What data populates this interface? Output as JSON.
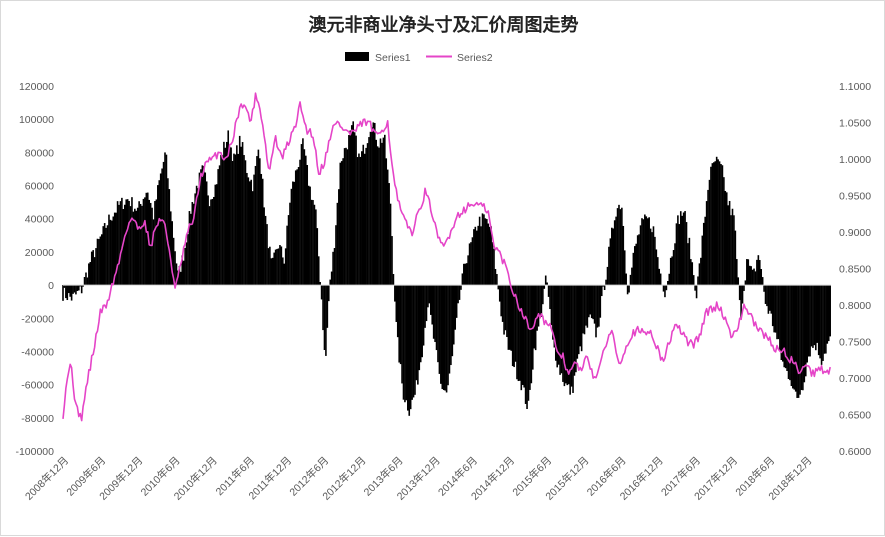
{
  "chart_data": {
    "type": "bar+line",
    "title": "澳元非商业净头寸及汇价周图走势",
    "legend_position": "top",
    "grid": false,
    "colors": {
      "Series1": "#000000",
      "Series2": "#e545c8"
    },
    "series": [
      {
        "name": "Series1",
        "type": "bar",
        "axis": "left",
        "anchors": [
          [
            "2008-12-01",
            -5000
          ],
          [
            "2009-01-15",
            -8000
          ],
          [
            "2009-03-01",
            -3000
          ],
          [
            "2009-04-15",
            15000
          ],
          [
            "2009-06-01",
            28000
          ],
          [
            "2009-07-15",
            40000
          ],
          [
            "2009-09-01",
            48000
          ],
          [
            "2009-10-15",
            52000
          ],
          [
            "2009-12-01",
            45000
          ],
          [
            "2010-01-15",
            58000
          ],
          [
            "2010-02-15",
            42000
          ],
          [
            "2010-03-15",
            62000
          ],
          [
            "2010-04-15",
            80000
          ],
          [
            "2010-05-15",
            40000
          ],
          [
            "2010-06-15",
            5000
          ],
          [
            "2010-07-15",
            20000
          ],
          [
            "2010-08-15",
            45000
          ],
          [
            "2010-09-15",
            60000
          ],
          [
            "2010-10-15",
            70000
          ],
          [
            "2010-11-15",
            52000
          ],
          [
            "2010-12-15",
            60000
          ],
          [
            "2011-01-15",
            80000
          ],
          [
            "2011-02-15",
            90000
          ],
          [
            "2011-03-15",
            75000
          ],
          [
            "2011-04-15",
            88000
          ],
          [
            "2011-05-15",
            70000
          ],
          [
            "2011-06-15",
            60000
          ],
          [
            "2011-07-15",
            85000
          ],
          [
            "2011-08-15",
            40000
          ],
          [
            "2011-09-15",
            10000
          ],
          [
            "2011-10-15",
            25000
          ],
          [
            "2011-11-15",
            15000
          ],
          [
            "2011-12-15",
            55000
          ],
          [
            "2012-01-15",
            70000
          ],
          [
            "2012-02-15",
            85000
          ],
          [
            "2012-03-15",
            60000
          ],
          [
            "2012-04-15",
            45000
          ],
          [
            "2012-05-15",
            -10000
          ],
          [
            "2012-06-01",
            -50000
          ],
          [
            "2012-06-20",
            -5000
          ],
          [
            "2012-07-15",
            25000
          ],
          [
            "2012-08-15",
            75000
          ],
          [
            "2012-09-15",
            85000
          ],
          [
            "2012-10-15",
            95000
          ],
          [
            "2012-11-15",
            75000
          ],
          [
            "2012-12-15",
            85000
          ],
          [
            "2013-01-15",
            100000
          ],
          [
            "2013-02-15",
            85000
          ],
          [
            "2013-03-15",
            90000
          ],
          [
            "2013-04-15",
            50000
          ],
          [
            "2013-05-01",
            5000
          ],
          [
            "2013-05-15",
            -30000
          ],
          [
            "2013-06-15",
            -65000
          ],
          [
            "2013-07-15",
            -75000
          ],
          [
            "2013-08-15",
            -65000
          ],
          [
            "2013-09-15",
            -40000
          ],
          [
            "2013-10-15",
            -10000
          ],
          [
            "2013-11-15",
            -35000
          ],
          [
            "2013-12-15",
            -60000
          ],
          [
            "2014-01-15",
            -65000
          ],
          [
            "2014-02-15",
            -40000
          ],
          [
            "2014-03-15",
            -10000
          ],
          [
            "2014-04-15",
            15000
          ],
          [
            "2014-05-15",
            25000
          ],
          [
            "2014-06-15",
            38000
          ],
          [
            "2014-07-15",
            40000
          ],
          [
            "2014-08-15",
            35000
          ],
          [
            "2014-09-15",
            5000
          ],
          [
            "2014-10-15",
            -25000
          ],
          [
            "2014-11-15",
            -40000
          ],
          [
            "2014-12-15",
            -50000
          ],
          [
            "2015-01-15",
            -60000
          ],
          [
            "2015-02-15",
            -75000
          ],
          [
            "2015-03-15",
            -40000
          ],
          [
            "2015-04-15",
            -20000
          ],
          [
            "2015-05-15",
            5000
          ],
          [
            "2015-06-15",
            -35000
          ],
          [
            "2015-07-15",
            -50000
          ],
          [
            "2015-08-15",
            -60000
          ],
          [
            "2015-09-15",
            -65000
          ],
          [
            "2015-10-15",
            -45000
          ],
          [
            "2015-11-15",
            -30000
          ],
          [
            "2015-12-15",
            -20000
          ],
          [
            "2016-01-15",
            -30000
          ],
          [
            "2016-02-15",
            -5000
          ],
          [
            "2016-03-15",
            20000
          ],
          [
            "2016-04-15",
            45000
          ],
          [
            "2016-05-15",
            50000
          ],
          [
            "2016-06-15",
            -5000
          ],
          [
            "2016-07-15",
            20000
          ],
          [
            "2016-08-15",
            35000
          ],
          [
            "2016-09-15",
            40000
          ],
          [
            "2016-10-15",
            35000
          ],
          [
            "2016-11-15",
            10000
          ],
          [
            "2016-12-15",
            -5000
          ],
          [
            "2017-01-15",
            20000
          ],
          [
            "2017-02-15",
            40000
          ],
          [
            "2017-03-15",
            45000
          ],
          [
            "2017-04-15",
            20000
          ],
          [
            "2017-05-15",
            -5000
          ],
          [
            "2017-06-15",
            30000
          ],
          [
            "2017-07-15",
            65000
          ],
          [
            "2017-08-15",
            75000
          ],
          [
            "2017-09-15",
            70000
          ],
          [
            "2017-10-15",
            50000
          ],
          [
            "2017-11-15",
            40000
          ],
          [
            "2017-12-15",
            -20000
          ],
          [
            "2018-01-15",
            15000
          ],
          [
            "2018-02-15",
            5000
          ],
          [
            "2018-03-15",
            20000
          ],
          [
            "2018-04-15",
            -10000
          ],
          [
            "2018-05-15",
            -20000
          ],
          [
            "2018-06-15",
            -35000
          ],
          [
            "2018-07-15",
            -50000
          ],
          [
            "2018-08-15",
            -55000
          ],
          [
            "2018-09-15",
            -70000
          ],
          [
            "2018-10-15",
            -60000
          ],
          [
            "2018-11-15",
            -40000
          ],
          [
            "2018-12-15",
            -35000
          ],
          [
            "2019-01-15",
            -45000
          ],
          [
            "2019-02-15",
            -35000
          ],
          [
            "2019-03-15",
            -30000
          ]
        ]
      },
      {
        "name": "Series2",
        "type": "line",
        "axis": "right",
        "anchors": [
          [
            "2008-12-01",
            0.65
          ],
          [
            "2008-12-20",
            0.7
          ],
          [
            "2009-01-10",
            0.72
          ],
          [
            "2009-02-01",
            0.66
          ],
          [
            "2009-03-01",
            0.645
          ],
          [
            "2009-04-01",
            0.7
          ],
          [
            "2009-05-01",
            0.74
          ],
          [
            "2009-06-01",
            0.79
          ],
          [
            "2009-07-01",
            0.8
          ],
          [
            "2009-08-01",
            0.83
          ],
          [
            "2009-09-01",
            0.86
          ],
          [
            "2009-10-01",
            0.9
          ],
          [
            "2009-11-01",
            0.92
          ],
          [
            "2009-12-01",
            0.905
          ],
          [
            "2010-01-01",
            0.915
          ],
          [
            "2010-02-01",
            0.88
          ],
          [
            "2010-03-01",
            0.91
          ],
          [
            "2010-04-01",
            0.92
          ],
          [
            "2010-05-01",
            0.88
          ],
          [
            "2010-06-01",
            0.82
          ],
          [
            "2010-07-01",
            0.86
          ],
          [
            "2010-08-01",
            0.9
          ],
          [
            "2010-09-01",
            0.92
          ],
          [
            "2010-10-01",
            0.975
          ],
          [
            "2010-11-01",
            0.995
          ],
          [
            "2010-12-01",
            1.0
          ],
          [
            "2011-01-01",
            1.01
          ],
          [
            "2011-02-01",
            1.0
          ],
          [
            "2011-03-01",
            1.02
          ],
          [
            "2011-04-01",
            1.06
          ],
          [
            "2011-05-01",
            1.08
          ],
          [
            "2011-06-01",
            1.05
          ],
          [
            "2011-07-01",
            1.09
          ],
          [
            "2011-08-01",
            1.05
          ],
          [
            "2011-09-01",
            0.98
          ],
          [
            "2011-10-01",
            1.03
          ],
          [
            "2011-11-01",
            1.0
          ],
          [
            "2011-12-01",
            1.02
          ],
          [
            "2012-01-01",
            1.04
          ],
          [
            "2012-02-01",
            1.075
          ],
          [
            "2012-03-01",
            1.04
          ],
          [
            "2012-04-01",
            1.035
          ],
          [
            "2012-05-01",
            0.98
          ],
          [
            "2012-06-01",
            1.0
          ],
          [
            "2012-07-01",
            1.04
          ],
          [
            "2012-08-01",
            1.05
          ],
          [
            "2012-09-01",
            1.04
          ],
          [
            "2012-10-01",
            1.035
          ],
          [
            "2012-11-01",
            1.04
          ],
          [
            "2012-12-01",
            1.05
          ],
          [
            "2013-01-01",
            1.05
          ],
          [
            "2013-02-01",
            1.03
          ],
          [
            "2013-03-01",
            1.04
          ],
          [
            "2013-04-01",
            1.05
          ],
          [
            "2013-05-01",
            0.97
          ],
          [
            "2013-06-01",
            0.93
          ],
          [
            "2013-07-01",
            0.91
          ],
          [
            "2013-08-01",
            0.9
          ],
          [
            "2013-09-01",
            0.93
          ],
          [
            "2013-10-01",
            0.955
          ],
          [
            "2013-11-01",
            0.93
          ],
          [
            "2013-12-01",
            0.89
          ],
          [
            "2014-01-01",
            0.88
          ],
          [
            "2014-02-01",
            0.9
          ],
          [
            "2014-03-01",
            0.92
          ],
          [
            "2014-04-01",
            0.93
          ],
          [
            "2014-05-01",
            0.935
          ],
          [
            "2014-06-01",
            0.94
          ],
          [
            "2014-07-01",
            0.935
          ],
          [
            "2014-08-01",
            0.93
          ],
          [
            "2014-09-01",
            0.88
          ],
          [
            "2014-10-01",
            0.87
          ],
          [
            "2014-11-01",
            0.85
          ],
          [
            "2014-12-01",
            0.82
          ],
          [
            "2015-01-01",
            0.8
          ],
          [
            "2015-02-01",
            0.78
          ],
          [
            "2015-03-01",
            0.765
          ],
          [
            "2015-04-01",
            0.79
          ],
          [
            "2015-05-01",
            0.78
          ],
          [
            "2015-06-01",
            0.77
          ],
          [
            "2015-07-01",
            0.74
          ],
          [
            "2015-08-01",
            0.73
          ],
          [
            "2015-09-01",
            0.705
          ],
          [
            "2015-10-01",
            0.72
          ],
          [
            "2015-11-01",
            0.71
          ],
          [
            "2015-12-01",
            0.73
          ],
          [
            "2016-01-01",
            0.7
          ],
          [
            "2016-02-01",
            0.715
          ],
          [
            "2016-03-01",
            0.75
          ],
          [
            "2016-04-01",
            0.765
          ],
          [
            "2016-05-01",
            0.72
          ],
          [
            "2016-06-01",
            0.74
          ],
          [
            "2016-07-01",
            0.76
          ],
          [
            "2016-08-01",
            0.765
          ],
          [
            "2016-09-01",
            0.76
          ],
          [
            "2016-10-01",
            0.765
          ],
          [
            "2016-11-01",
            0.745
          ],
          [
            "2016-12-01",
            0.72
          ],
          [
            "2017-01-01",
            0.75
          ],
          [
            "2017-02-01",
            0.77
          ],
          [
            "2017-03-01",
            0.765
          ],
          [
            "2017-04-01",
            0.75
          ],
          [
            "2017-05-01",
            0.745
          ],
          [
            "2017-06-01",
            0.76
          ],
          [
            "2017-07-01",
            0.79
          ],
          [
            "2017-08-01",
            0.795
          ],
          [
            "2017-09-01",
            0.8
          ],
          [
            "2017-10-01",
            0.78
          ],
          [
            "2017-11-01",
            0.76
          ],
          [
            "2017-12-01",
            0.765
          ],
          [
            "2018-01-01",
            0.8
          ],
          [
            "2018-02-01",
            0.785
          ],
          [
            "2018-03-01",
            0.77
          ],
          [
            "2018-04-01",
            0.76
          ],
          [
            "2018-05-01",
            0.755
          ],
          [
            "2018-06-01",
            0.74
          ],
          [
            "2018-07-01",
            0.74
          ],
          [
            "2018-08-01",
            0.73
          ],
          [
            "2018-09-01",
            0.72
          ],
          [
            "2018-10-01",
            0.71
          ],
          [
            "2018-11-01",
            0.72
          ],
          [
            "2018-12-01",
            0.705
          ],
          [
            "2019-01-01",
            0.715
          ],
          [
            "2019-02-01",
            0.71
          ],
          [
            "2019-03-01",
            0.71
          ]
        ]
      }
    ],
    "x_range": [
      "2008-12-01",
      "2019-03-01"
    ],
    "x_ticks": [
      "2008年12月",
      "2009年6月",
      "2009年12月",
      "2010年6月",
      "2010年12月",
      "2011年6月",
      "2011年12月",
      "2012年6月",
      "2012年12月",
      "2013年6月",
      "2013年12月",
      "2014年6月",
      "2014年12月",
      "2015年6月",
      "2015年12月",
      "2016年6月",
      "2016年12月",
      "2017年6月",
      "2017年12月",
      "2018年6月",
      "2018年12月"
    ],
    "y_left": {
      "min": -100000,
      "max": 120000,
      "step": 20000,
      "ticks": [
        "-100000",
        "-80000",
        "-60000",
        "-40000",
        "-20000",
        "0",
        "20000",
        "40000",
        "60000",
        "80000",
        "100000",
        "120000"
      ]
    },
    "y_right": {
      "min": 0.6,
      "max": 1.1,
      "step": 0.05,
      "ticks": [
        "0.6000",
        "0.6500",
        "0.7000",
        "0.7500",
        "0.8000",
        "0.8500",
        "0.9000",
        "0.9500",
        "1.0000",
        "1.0500",
        "1.1000"
      ]
    }
  }
}
